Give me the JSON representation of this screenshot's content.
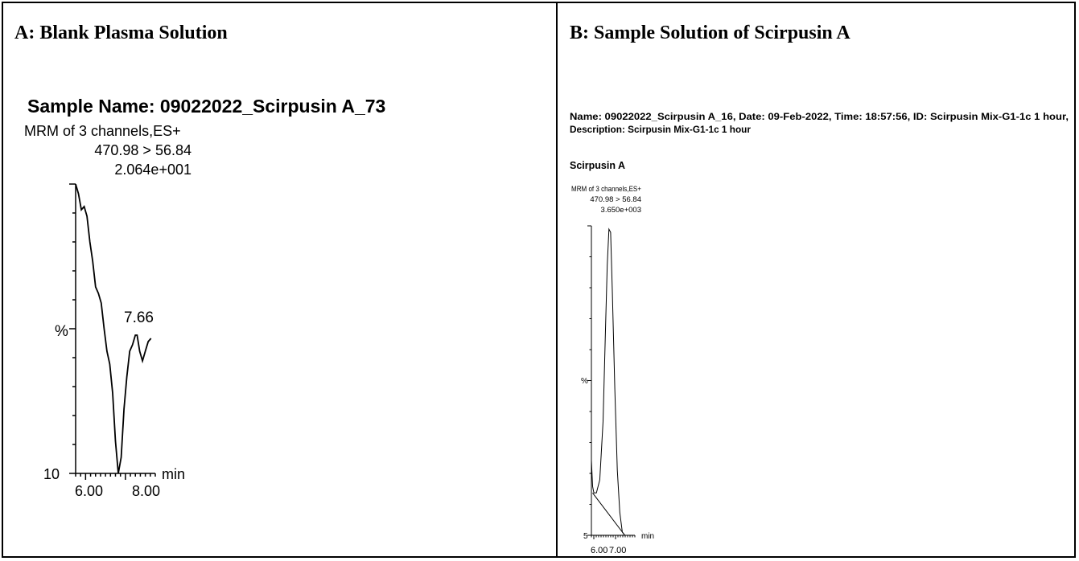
{
  "panels": [
    {
      "label": "A: Blank Plasma Solution",
      "sample_name": "Sample Name: 09022022_Scirpusin A_73",
      "header": [
        "MRM of 3 channels,ES+",
        "470.98 > 56.84",
        "2.064e+001"
      ],
      "y_label": "%",
      "y_min_label": "10",
      "x_unit": "min",
      "peak_label": "7.66"
    },
    {
      "label": "B: Sample Solution of Scirpusin A",
      "info_line1": "Name: 09022022_Scirpusin A_16, Date: 09-Feb-2022, Time: 18:57:56, ID: Scirpusin Mix-G1-1c 1 hour,",
      "info_line2": "Description: Scirpusin Mix-G1-1c 1 hour",
      "compound": "Scirpusin A",
      "header": [
        "MRM of 3 channels,ES+",
        "470.98 > 56.84",
        "3.650e+003"
      ],
      "y_label": "%",
      "y_min_label": "5",
      "x_unit": "min"
    }
  ],
  "chart_data": [
    {
      "type": "line",
      "title": "Sample Name: 09022022_Scirpusin A_73",
      "xlabel": "min",
      "ylabel": "%",
      "x_ticks": [
        "6.00",
        "8.00"
      ],
      "xlim": [
        5.5,
        8.3
      ],
      "ylim": [
        10,
        100
      ],
      "series": [
        {
          "x": [
            5.5,
            5.6,
            5.7,
            5.8,
            5.9,
            6.0,
            6.1,
            6.2,
            6.3,
            6.4,
            6.5,
            6.6,
            6.7,
            6.8,
            6.9,
            7.0,
            7.1,
            7.2,
            7.3,
            7.4,
            7.5,
            7.6,
            7.66,
            7.75,
            7.85,
            7.95,
            8.05,
            8.15
          ],
          "y": [
            100,
            97,
            92,
            93,
            90,
            82,
            76,
            68,
            66,
            63,
            55,
            48,
            44,
            35,
            20,
            10,
            15,
            30,
            40,
            48,
            50,
            53,
            53,
            48,
            45,
            48,
            51,
            52
          ]
        }
      ],
      "annotations": [
        {
          "x": 7.66,
          "text": "7.66"
        }
      ]
    },
    {
      "type": "line",
      "title": "Scirpusin A",
      "xlabel": "min",
      "ylabel": "%",
      "x_ticks": [
        "6.00",
        "7.00"
      ],
      "xlim": [
        5.2,
        7.8
      ],
      "ylim": [
        5,
        100
      ],
      "series": [
        {
          "x": [
            5.2,
            5.27,
            5.35,
            5.5,
            5.7,
            5.9,
            6.05,
            6.15,
            6.25,
            6.35,
            6.45,
            6.6,
            6.75,
            6.9,
            7.05,
            7.2
          ],
          "y": [
            28,
            20,
            18,
            18,
            22,
            40,
            70,
            88,
            99,
            98,
            80,
            50,
            25,
            12,
            6,
            5
          ]
        },
        {
          "x": [
            5.27,
            7.2
          ],
          "y": [
            18,
            5
          ]
        }
      ]
    }
  ]
}
